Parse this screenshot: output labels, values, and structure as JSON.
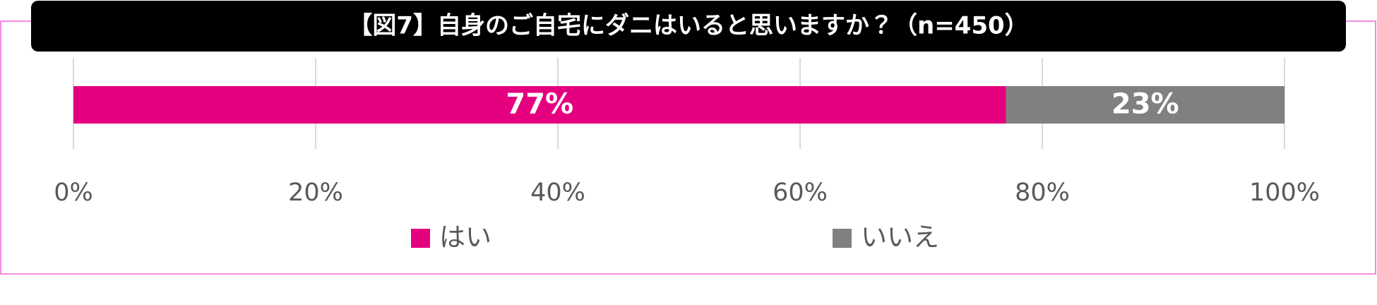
{
  "chart_data": {
    "type": "bar",
    "orientation": "horizontal",
    "stacked": true,
    "title": "【図7】自身のご自宅にダニはいると思いますか？（n=450）",
    "categories": [
      null
    ],
    "series": [
      {
        "name": "はい",
        "color": "#e4007f",
        "values": [
          77
        ],
        "value_labels": [
          "77%"
        ]
      },
      {
        "name": "いいえ",
        "color": "#808080",
        "values": [
          23
        ],
        "value_labels": [
          "23%"
        ]
      }
    ],
    "xlim": [
      0,
      100
    ],
    "xticks": [
      {
        "value": 0,
        "label": "0%"
      },
      {
        "value": 20,
        "label": "20%"
      },
      {
        "value": 40,
        "label": "40%"
      },
      {
        "value": 60,
        "label": "60%"
      },
      {
        "value": 80,
        "label": "80%"
      },
      {
        "value": 100,
        "label": "100%"
      }
    ],
    "grid": true,
    "legend": "bottom"
  }
}
